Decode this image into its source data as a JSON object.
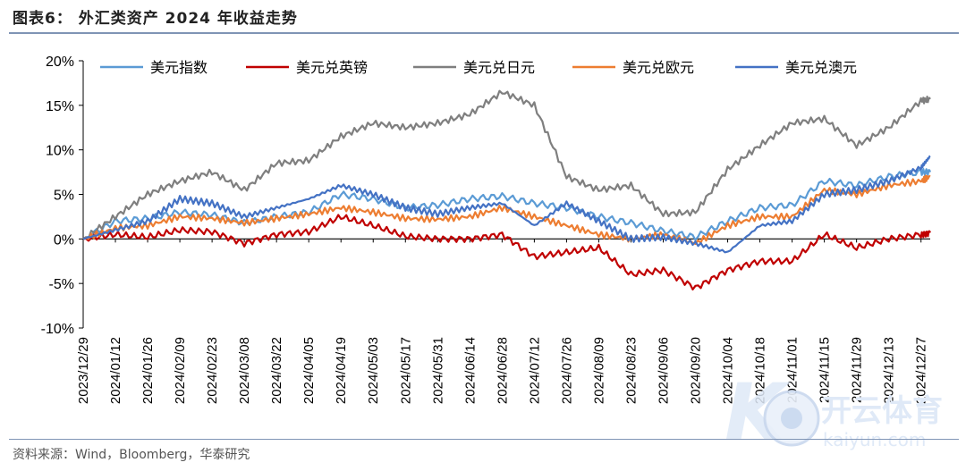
{
  "title": "图表6：  外汇类资产 2024 年收益走势",
  "source": "资料来源：Wind，Bloomberg，华泰研究",
  "watermark": {
    "brand": "开云体育",
    "site": "kaiyun.com"
  },
  "chart_data": {
    "type": "line",
    "title": "",
    "xlabel": "",
    "ylabel": "",
    "ylim": [
      -10,
      20
    ],
    "yticks": [
      "20%",
      "15%",
      "10%",
      "5%",
      "0%",
      "-5%",
      "-10%"
    ],
    "ytick_values": [
      20,
      15,
      10,
      5,
      0,
      -5,
      -10
    ],
    "x_tick_labels": [
      "2023/12/29",
      "2024/01/12",
      "2024/01/26",
      "2024/02/09",
      "2024/02/23",
      "2024/03/08",
      "2024/03/22",
      "2024/04/05",
      "2024/04/19",
      "2024/05/03",
      "2024/05/17",
      "2024/05/31",
      "2024/06/14",
      "2024/06/28",
      "2024/07/12",
      "2024/07/26",
      "2024/08/09",
      "2024/08/23",
      "2024/09/06",
      "2024/09/20",
      "2024/10/04",
      "2024/10/18",
      "2024/11/01",
      "2024/11/15",
      "2024/11/29",
      "2024/12/13",
      "2024/12/27"
    ],
    "x": [
      "2023/12/29",
      "2024/01/12",
      "2024/01/26",
      "2024/02/09",
      "2024/02/23",
      "2024/03/08",
      "2024/03/22",
      "2024/04/05",
      "2024/04/19",
      "2024/05/03",
      "2024/05/17",
      "2024/05/31",
      "2024/06/14",
      "2024/06/28",
      "2024/07/12",
      "2024/07/26",
      "2024/08/09",
      "2024/08/23",
      "2024/09/06",
      "2024/09/20",
      "2024/10/04",
      "2024/10/18",
      "2024/11/01",
      "2024/11/15",
      "2024/11/29",
      "2024/12/13",
      "2024/12/27",
      "2024/12/31"
    ],
    "legend_position": "top",
    "grid": false,
    "series": [
      {
        "name": "美元指数",
        "color": "#5b9bd5",
        "values": [
          0,
          2.0,
          2.3,
          3.0,
          2.7,
          1.8,
          2.5,
          3.0,
          5.0,
          4.5,
          3.5,
          3.8,
          4.5,
          4.8,
          4.0,
          3.5,
          2.5,
          1.8,
          0.9,
          0.2,
          2.0,
          3.5,
          3.8,
          6.5,
          6.0,
          7.0,
          7.5,
          7.5
        ]
      },
      {
        "name": "美元兑英镑",
        "color": "#c00000",
        "values": [
          0,
          0.5,
          0.2,
          1.0,
          0.8,
          -0.5,
          0.5,
          0.8,
          2.5,
          1.5,
          0.3,
          0.0,
          0.0,
          0.5,
          -2.0,
          -1.5,
          -1.0,
          -4.0,
          -3.5,
          -5.5,
          -3.5,
          -2.5,
          -2.5,
          0.5,
          -1.0,
          0.0,
          0.5,
          0.7
        ]
      },
      {
        "name": "美元兑日元",
        "color": "#7f7f7f",
        "values": [
          0,
          2.5,
          5.0,
          6.5,
          7.5,
          5.5,
          8.5,
          8.8,
          11.5,
          13.0,
          12.5,
          13.0,
          14.0,
          16.5,
          15.0,
          7.0,
          5.5,
          6.0,
          2.8,
          3.0,
          7.8,
          10.5,
          13.0,
          13.5,
          10.5,
          12.5,
          15.5,
          15.7
        ]
      },
      {
        "name": "美元兑欧元",
        "color": "#ed7d31",
        "values": [
          0,
          1.2,
          1.5,
          2.5,
          2.3,
          1.8,
          2.3,
          2.8,
          3.5,
          3.0,
          2.3,
          2.2,
          2.5,
          3.5,
          2.5,
          1.5,
          0.5,
          0.0,
          0.5,
          -0.5,
          1.5,
          2.5,
          2.5,
          5.5,
          5.0,
          6.0,
          6.5,
          7.0
        ]
      },
      {
        "name": "美元兑澳元",
        "color": "#4472c4",
        "values": [
          0,
          1.0,
          2.0,
          4.5,
          4.0,
          2.5,
          3.5,
          4.5,
          6.0,
          5.0,
          3.5,
          2.8,
          3.5,
          4.0,
          1.5,
          4.0,
          2.0,
          0.0,
          0.2,
          -0.5,
          -1.5,
          1.5,
          2.0,
          5.0,
          5.5,
          6.5,
          8.0,
          9.3
        ]
      }
    ]
  }
}
